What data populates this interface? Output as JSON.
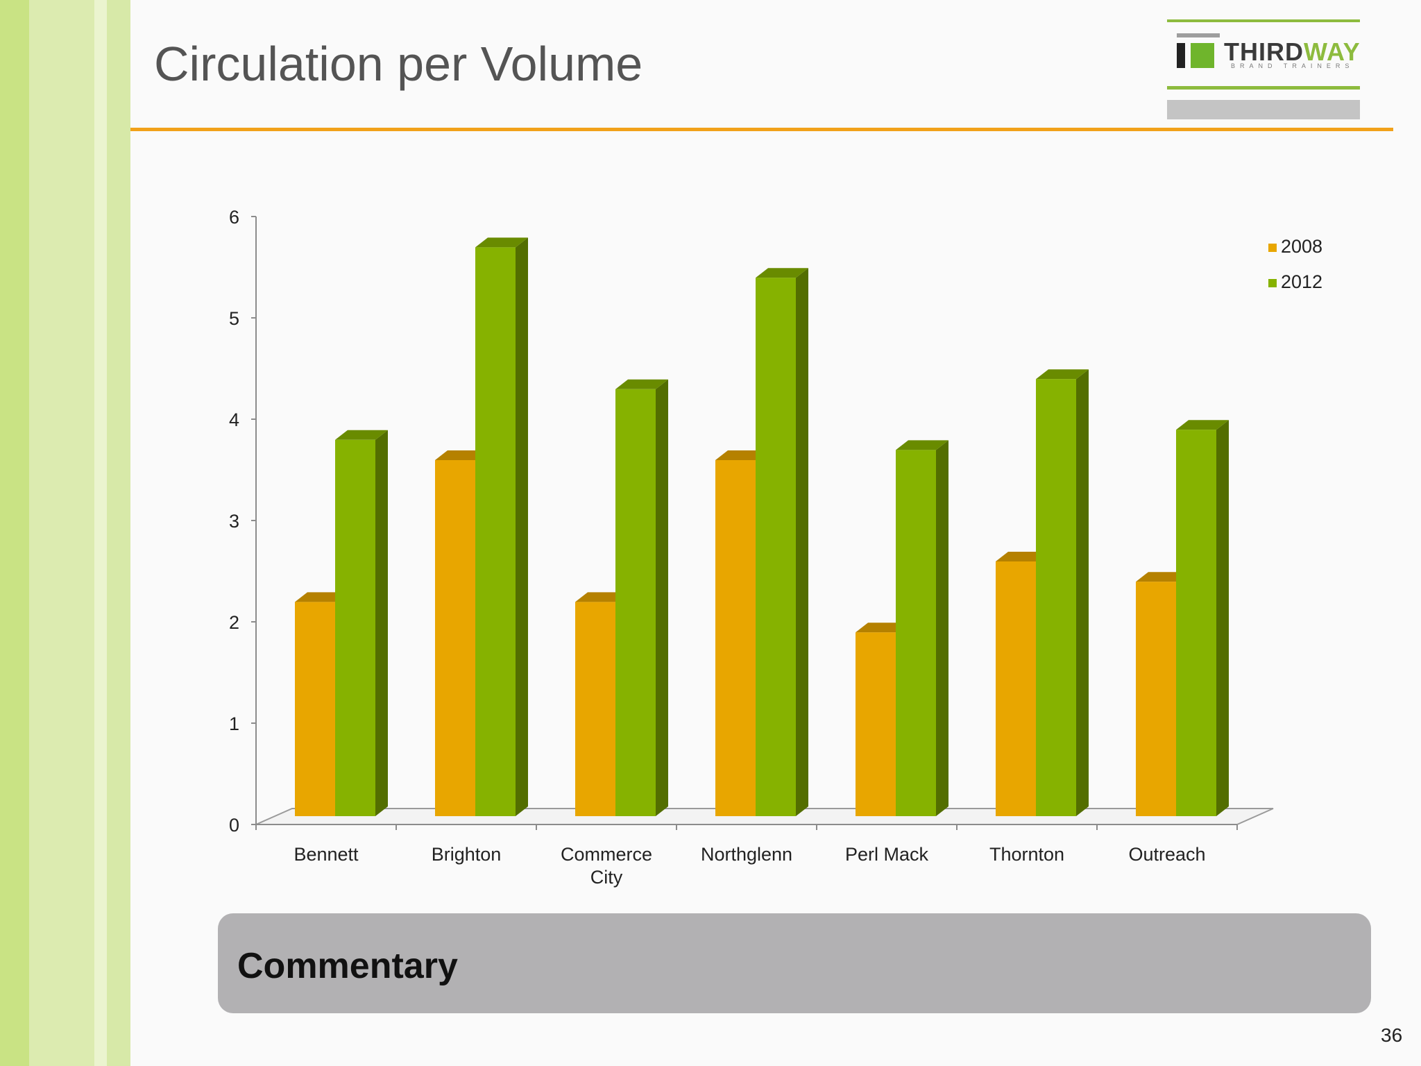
{
  "slide": {
    "title": "Circulation per Volume",
    "page_number": "36"
  },
  "logo": {
    "word_part1": "THIRD",
    "word_part2": "WAY",
    "tagline": "BRAND TRAINERS"
  },
  "commentary": {
    "label": "Commentary"
  },
  "colors": {
    "accent_orange": "#f1a11a",
    "series_2008": "#e8a600",
    "series_2012": "#86b200",
    "sidebar_greens": [
      "#c9e384",
      "#d9eaad",
      "#e6f1c4"
    ]
  },
  "chart_data": {
    "type": "bar",
    "style": "3d-clustered-column",
    "categories": [
      "Bennett",
      "Brighton",
      "Commerce City",
      "Northglenn",
      "Perl Mack",
      "Thornton",
      "Outreach"
    ],
    "series": [
      {
        "name": "2008",
        "values": [
          2.1,
          3.5,
          2.1,
          3.5,
          1.8,
          2.5,
          2.3
        ]
      },
      {
        "name": "2012",
        "values": [
          3.7,
          5.6,
          4.2,
          5.3,
          3.6,
          4.3,
          3.8
        ]
      }
    ],
    "yticks": [
      "0",
      "1",
      "2",
      "3",
      "4",
      "5",
      "6"
    ],
    "ylim": [
      0,
      6
    ],
    "legend_position": "right",
    "grid": false
  }
}
